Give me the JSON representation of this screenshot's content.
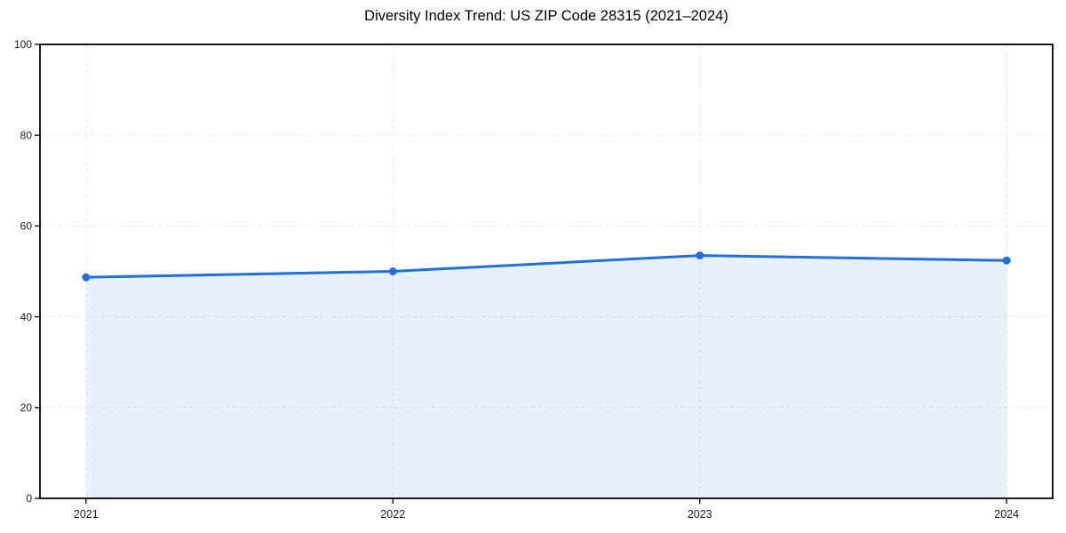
{
  "page": {
    "background": "#ffffff"
  },
  "chart_data": {
    "type": "area",
    "title": "Diversity Index Trend: US ZIP Code 28315 (2021–2024)",
    "x": [
      2021,
      2022,
      2023,
      2024
    ],
    "values": [
      48.7,
      50.0,
      53.5,
      52.4
    ],
    "xlabel": "",
    "ylabel": "",
    "ylim": [
      0,
      100
    ],
    "yticks": [
      0,
      20,
      40,
      60,
      80,
      100
    ],
    "xtick_labels": [
      "2021",
      "2022",
      "2023",
      "2024"
    ],
    "grid": "dashed",
    "legend_position": "none",
    "line_color": "#1f6fdd",
    "fill_opacity": 0.1,
    "marker": "circle",
    "grid_color": "#e7e7e7",
    "axis_color": "#000000",
    "tick_label_color": "#1a1a1a"
  }
}
